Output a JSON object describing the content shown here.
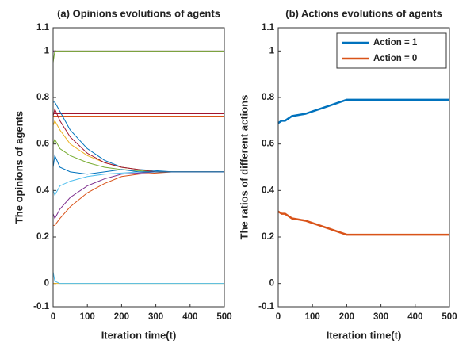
{
  "chart_data": [
    {
      "type": "line",
      "title": "(a) Opinions evolutions of agents",
      "xlabel": "Iteration time(t)",
      "ylabel": "The opinions of agents",
      "x": [
        0,
        5,
        20,
        50,
        100,
        150,
        200,
        250,
        300,
        350,
        400,
        500
      ],
      "xlim": [
        0,
        500
      ],
      "xticks": [
        0,
        100,
        200,
        300,
        400,
        500
      ],
      "ylim": [
        -0.1,
        1.1
      ],
      "yticks": [
        -0.1,
        0,
        0.2,
        0.4,
        0.6,
        0.8,
        1,
        1.1
      ],
      "series": [
        {
          "color": "#7E2F8E",
          "values": [
            1,
            1,
            1,
            1,
            1,
            1,
            1,
            1,
            1,
            1,
            1,
            1
          ]
        },
        {
          "color": "#EDB120",
          "values": [
            0,
            0,
            0,
            0,
            0,
            0,
            0,
            0,
            0,
            0,
            0,
            0
          ]
        },
        {
          "color": "#A2142F",
          "values": [
            0.73,
            0.73,
            0.73,
            0.73,
            0.73,
            0.73,
            0.73,
            0.73,
            0.73,
            0.73,
            0.73,
            0.73
          ]
        },
        {
          "color": "#D95319",
          "values": [
            0.72,
            0.72,
            0.72,
            0.72,
            0.72,
            0.72,
            0.72,
            0.72,
            0.72,
            0.72,
            0.72,
            0.72
          ]
        },
        {
          "color": "#77AC30",
          "values": [
            0.95,
            1,
            1,
            1,
            1,
            1,
            1,
            1,
            1,
            1,
            1,
            1
          ]
        },
        {
          "color": "#4DBEEE",
          "values": [
            0.05,
            0.01,
            0,
            0,
            0,
            0,
            0,
            0,
            0,
            0,
            0,
            0
          ]
        },
        {
          "color": "#0072BD",
          "values": [
            0.78,
            0.78,
            0.74,
            0.66,
            0.58,
            0.53,
            0.5,
            0.49,
            0.485,
            0.48,
            0.48,
            0.48
          ]
        },
        {
          "color": "#D95319",
          "values": [
            0.25,
            0.25,
            0.28,
            0.33,
            0.39,
            0.43,
            0.46,
            0.47,
            0.475,
            0.48,
            0.48,
            0.48
          ]
        },
        {
          "color": "#EDB120",
          "values": [
            0.68,
            0.7,
            0.66,
            0.6,
            0.55,
            0.52,
            0.5,
            0.49,
            0.48,
            0.48,
            0.48,
            0.48
          ]
        },
        {
          "color": "#7E2F8E",
          "values": [
            0.3,
            0.28,
            0.32,
            0.37,
            0.42,
            0.45,
            0.47,
            0.475,
            0.48,
            0.48,
            0.48,
            0.48
          ]
        },
        {
          "color": "#77AC30",
          "values": [
            0.6,
            0.62,
            0.58,
            0.55,
            0.52,
            0.5,
            0.49,
            0.485,
            0.48,
            0.48,
            0.48,
            0.48
          ]
        },
        {
          "color": "#4DBEEE",
          "values": [
            0.4,
            0.38,
            0.42,
            0.44,
            0.46,
            0.47,
            0.475,
            0.48,
            0.48,
            0.48,
            0.48,
            0.48
          ]
        },
        {
          "color": "#A2142F",
          "values": [
            0.72,
            0.75,
            0.7,
            0.63,
            0.56,
            0.52,
            0.5,
            0.49,
            0.48,
            0.48,
            0.48,
            0.48
          ]
        },
        {
          "color": "#0072BD",
          "values": [
            0.5,
            0.55,
            0.5,
            0.48,
            0.47,
            0.48,
            0.49,
            0.48,
            0.48,
            0.48,
            0.48,
            0.48
          ]
        }
      ]
    },
    {
      "type": "line",
      "title": "(b) Actions evolutions of agents",
      "xlabel": "Iteration time(t)",
      "ylabel": "The ratios of different actions",
      "x": [
        0,
        10,
        20,
        40,
        60,
        80,
        100,
        120,
        150,
        180,
        200,
        300,
        400,
        500
      ],
      "xlim": [
        0,
        500
      ],
      "xticks": [
        0,
        100,
        200,
        300,
        400,
        500
      ],
      "ylim": [
        -0.1,
        1.1
      ],
      "yticks": [
        -0.1,
        0,
        0.2,
        0.4,
        0.6,
        0.8,
        1,
        1.1
      ],
      "legend": "upper right",
      "series": [
        {
          "name": "Action = 1",
          "color": "#0072BD",
          "values": [
            0.69,
            0.7,
            0.7,
            0.72,
            0.725,
            0.73,
            0.74,
            0.75,
            0.765,
            0.78,
            0.79,
            0.79,
            0.79,
            0.79
          ]
        },
        {
          "name": "Action = 0",
          "color": "#D95319",
          "values": [
            0.31,
            0.3,
            0.3,
            0.28,
            0.275,
            0.27,
            0.26,
            0.25,
            0.235,
            0.22,
            0.21,
            0.21,
            0.21,
            0.21
          ]
        }
      ]
    }
  ]
}
